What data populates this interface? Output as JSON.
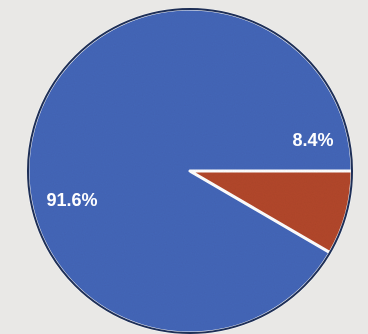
{
  "chart_data": {
    "type": "pie",
    "slices": [
      {
        "value": 91.6,
        "label": "91.6%",
        "color": "#4466b8"
      },
      {
        "value": 8.4,
        "label": "8.4%",
        "color": "#b2472a"
      }
    ],
    "start_angle_deg": 0,
    "direction": "counterclockwise",
    "slice_border_color": "#ffffff",
    "outline_color": "#1e2f57",
    "background_color": "#e9e8e6"
  }
}
